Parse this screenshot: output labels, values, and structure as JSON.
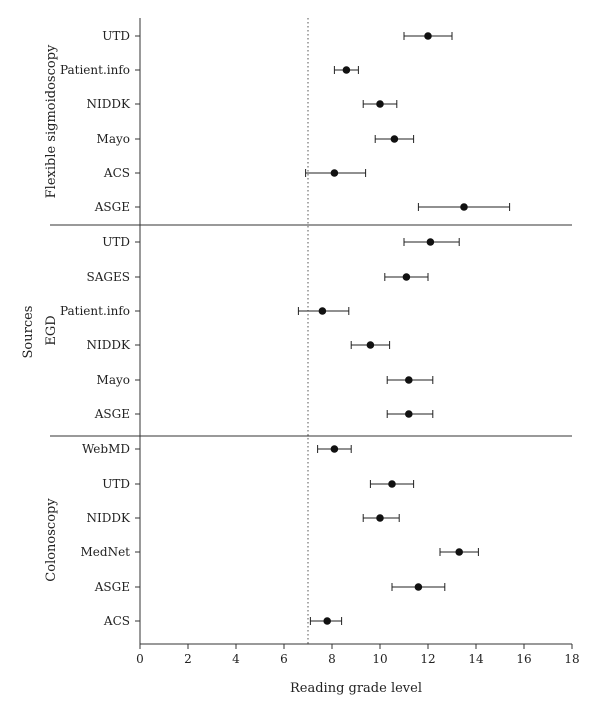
{
  "chart_data": {
    "type": "scatter",
    "orientation": "horizontal",
    "xlabel": "Reading grade level",
    "ylabel": "Sources",
    "xlim": [
      0,
      18
    ],
    "xticks": [
      0,
      2,
      4,
      6,
      8,
      10,
      12,
      14,
      16,
      18
    ],
    "reference_line": 7,
    "grid": false,
    "groups": [
      {
        "name": "Flexible sigmoidoscopy",
        "items": [
          {
            "label": "UTD",
            "mean": 12.0,
            "lower": 11.0,
            "upper": 13.0
          },
          {
            "label": "Patient.info",
            "mean": 8.6,
            "lower": 8.1,
            "upper": 9.1
          },
          {
            "label": "NIDDK",
            "mean": 10.0,
            "lower": 9.3,
            "upper": 10.7
          },
          {
            "label": "Mayo",
            "mean": 10.6,
            "lower": 9.8,
            "upper": 11.4
          },
          {
            "label": "ACS",
            "mean": 8.1,
            "lower": 6.9,
            "upper": 9.4
          },
          {
            "label": "ASGE",
            "mean": 13.5,
            "lower": 11.6,
            "upper": 15.4
          }
        ]
      },
      {
        "name": "EGD",
        "items": [
          {
            "label": "UTD",
            "mean": 12.1,
            "lower": 11.0,
            "upper": 13.3
          },
          {
            "label": "SAGES",
            "mean": 11.1,
            "lower": 10.2,
            "upper": 12.0
          },
          {
            "label": "Patient.info",
            "mean": 7.6,
            "lower": 6.6,
            "upper": 8.7
          },
          {
            "label": "NIDDK",
            "mean": 9.6,
            "lower": 8.8,
            "upper": 10.4
          },
          {
            "label": "Mayo",
            "mean": 11.2,
            "lower": 10.3,
            "upper": 12.2
          },
          {
            "label": "ASGE",
            "mean": 11.2,
            "lower": 10.3,
            "upper": 12.2
          }
        ]
      },
      {
        "name": "Colonoscopy",
        "items": [
          {
            "label": "WebMD",
            "mean": 8.1,
            "lower": 7.4,
            "upper": 8.8
          },
          {
            "label": "UTD",
            "mean": 10.5,
            "lower": 9.6,
            "upper": 11.4
          },
          {
            "label": "NIDDK",
            "mean": 10.0,
            "lower": 9.3,
            "upper": 10.8
          },
          {
            "label": "MedNet",
            "mean": 13.3,
            "lower": 12.5,
            "upper": 14.1
          },
          {
            "label": "ASGE",
            "mean": 11.6,
            "lower": 10.5,
            "upper": 12.7
          },
          {
            "label": "ACS",
            "mean": 7.8,
            "lower": 7.1,
            "upper": 8.4
          }
        ]
      }
    ]
  }
}
